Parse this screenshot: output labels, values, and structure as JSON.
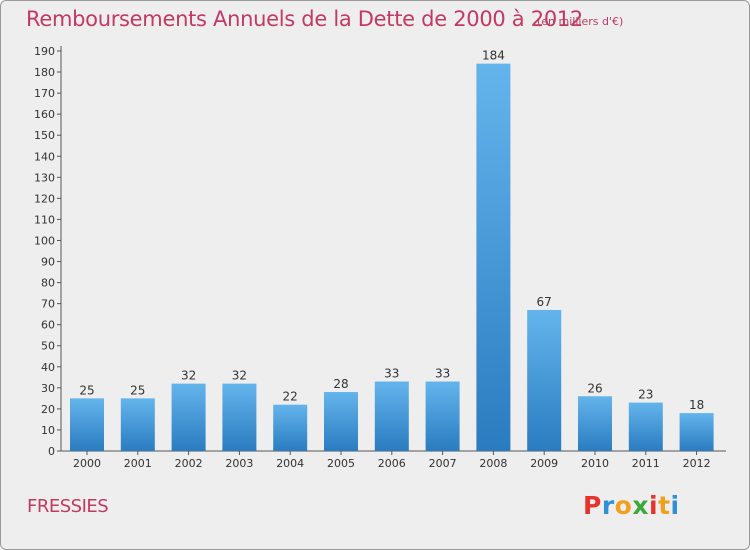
{
  "header": {
    "title": "Remboursements Annuels de la Dette de 2000 à 2012",
    "subtitle": "(en milliers d'€)"
  },
  "footer": {
    "commune": "FRESSIES",
    "logo_text": "Proxiti"
  },
  "colors": {
    "title": "#c23a64",
    "bar_light": "#64b4ec",
    "bar_dark": "#2a7cc0",
    "background": "#eeeeee",
    "logo_letters": [
      "#e8332b",
      "#2f8fd8",
      "#f0a020",
      "#3aa83a",
      "#e8332b",
      "#f0a020",
      "#2f8fd8"
    ]
  },
  "chart_data": {
    "type": "bar",
    "title": "Remboursements Annuels de la Dette de 2000 à 2012",
    "subtitle": "(en milliers d'€)",
    "categories": [
      "2000",
      "2001",
      "2002",
      "2003",
      "2004",
      "2005",
      "2006",
      "2007",
      "2008",
      "2009",
      "2010",
      "2011",
      "2012"
    ],
    "values": [
      25,
      25,
      32,
      32,
      22,
      28,
      33,
      33,
      184,
      67,
      26,
      23,
      18
    ],
    "ylim": [
      0,
      190
    ],
    "yticks": [
      0,
      10,
      20,
      30,
      40,
      50,
      60,
      70,
      80,
      90,
      100,
      110,
      120,
      130,
      140,
      150,
      160,
      170,
      180,
      190
    ],
    "grid": false,
    "data_labels": true
  }
}
